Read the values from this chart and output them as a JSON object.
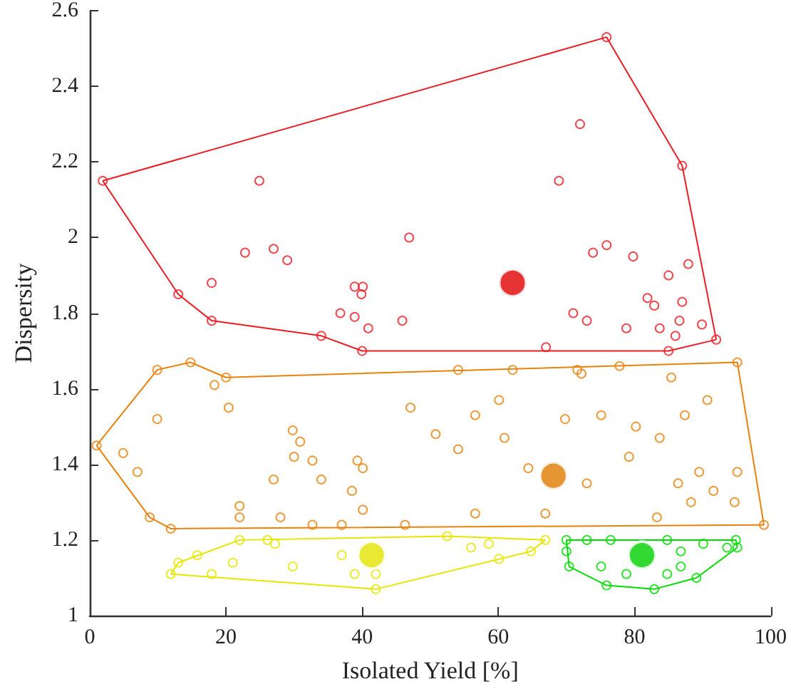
{
  "chart_data": {
    "type": "scatter",
    "xlabel": "Isolated Yield [%]",
    "ylabel": "Dispersity",
    "xlim": [
      0,
      100
    ],
    "xticks": [
      0,
      20,
      40,
      60,
      80,
      100
    ],
    "ylim": [
      1,
      2.6
    ],
    "yticks": [
      1,
      1.2,
      1.4,
      1.6,
      1.8,
      2,
      2.2,
      2.4,
      2.6
    ],
    "grid": false,
    "marker": "circle",
    "series": [
      {
        "type": "line",
        "color": "#ec1c24",
        "marker": "none",
        "x": [
          1.9,
          75.9,
          87.0,
          92.0
        ],
        "values": [
          2.15,
          2.53,
          2.19,
          1.73
        ]
      },
      {
        "type": "line",
        "color": "#ec1c24",
        "marker": "none",
        "x": [
          1.9,
          13.0,
          17.9,
          34.0,
          40.0,
          85.0,
          92.0
        ],
        "values": [
          2.15,
          1.85,
          1.78,
          1.74,
          1.7,
          1.7,
          1.73
        ]
      },
      {
        "type": "line",
        "color": "#e8820c",
        "marker": "none",
        "x": [
          1.0,
          9.9,
          14.8,
          20.0,
          95.1,
          99.0
        ],
        "values": [
          1.45,
          1.65,
          1.67,
          1.63,
          1.67,
          1.24
        ]
      },
      {
        "type": "line",
        "color": "#e8820c",
        "marker": "none",
        "x": [
          1.0,
          8.8,
          11.9,
          99.0
        ],
        "values": [
          1.45,
          1.26,
          1.23,
          1.24
        ]
      },
      {
        "type": "line",
        "color": "#e6e600",
        "marker": "none",
        "x": [
          11.9,
          13.0,
          22.0,
          52.5,
          66.9
        ],
        "values": [
          1.11,
          1.14,
          1.2,
          1.21,
          1.2
        ]
      },
      {
        "type": "line",
        "color": "#e6e600",
        "marker": "none",
        "x": [
          11.9,
          42.0,
          64.8,
          66.9
        ],
        "values": [
          1.11,
          1.07,
          1.17,
          1.2
        ]
      },
      {
        "type": "line",
        "color": "#00dd00",
        "marker": "none",
        "x": [
          70.0,
          94.9,
          95.1
        ],
        "values": [
          1.2,
          1.2,
          1.18
        ]
      },
      {
        "type": "line",
        "color": "#00dd00",
        "marker": "none",
        "x": [
          70.0,
          70.4,
          75.9,
          82.9,
          89.1,
          95.1
        ],
        "values": [
          1.2,
          1.13,
          1.08,
          1.07,
          1.1,
          1.18
        ]
      },
      {
        "color": "#ec1c24",
        "x": [
          1.9,
          75.9,
          87.0,
          92.0,
          85.0,
          67.0,
          40.0,
          34.0,
          17.9,
          13.0,
          22.8,
          27.0,
          29.0,
          17.9,
          38.9,
          40.1,
          39.9,
          36.8,
          38.9,
          40.9,
          45.9,
          46.9,
          72.0,
          68.9,
          75.9,
          73.9,
          79.8,
          85.0,
          87.9,
          81.9,
          82.9,
          71.0,
          73.0,
          87.0,
          86.6,
          89.9,
          78.8,
          83.7,
          86.0,
          24.9
        ],
        "values": [
          2.15,
          2.53,
          2.19,
          1.73,
          1.7,
          1.71,
          1.7,
          1.74,
          1.78,
          1.85,
          1.96,
          1.97,
          1.94,
          1.88,
          1.87,
          1.87,
          1.85,
          1.8,
          1.79,
          1.76,
          1.78,
          2.0,
          2.3,
          2.15,
          1.98,
          1.96,
          1.95,
          1.9,
          1.93,
          1.84,
          1.82,
          1.8,
          1.78,
          1.83,
          1.78,
          1.77,
          1.76,
          1.76,
          1.74,
          2.15
        ]
      },
      {
        "color": "#e8820c",
        "x": [
          9.9,
          14.8,
          20.0,
          18.3,
          20.4,
          9.9,
          1.0,
          4.9,
          7.0,
          8.8,
          11.9,
          22.0,
          22.0,
          28.0,
          32.7,
          37.0,
          29.8,
          30.9,
          30.0,
          27.0,
          34.0,
          32.7,
          39.3,
          40.1,
          38.5,
          40.1,
          47.1,
          50.8,
          54.1,
          60.9,
          62.1,
          54.1,
          71.6,
          72.2,
          77.8,
          85.4,
          90.7,
          95.1,
          87.4,
          95.1,
          99.0,
          94.7,
          88.3,
          83.3,
          66.9,
          56.6,
          46.3,
          64.4,
          73.0,
          79.2,
          86.4,
          69.8,
          75.1,
          80.2,
          56.6,
          60.1,
          91.6,
          89.5,
          83.7
        ],
        "values": [
          1.65,
          1.67,
          1.63,
          1.61,
          1.55,
          1.52,
          1.45,
          1.43,
          1.38,
          1.26,
          1.23,
          1.29,
          1.26,
          1.26,
          1.24,
          1.24,
          1.49,
          1.46,
          1.42,
          1.36,
          1.36,
          1.41,
          1.41,
          1.39,
          1.33,
          1.28,
          1.55,
          1.48,
          1.44,
          1.47,
          1.65,
          1.65,
          1.65,
          1.64,
          1.66,
          1.63,
          1.57,
          1.67,
          1.53,
          1.38,
          1.24,
          1.3,
          1.3,
          1.26,
          1.27,
          1.27,
          1.24,
          1.39,
          1.35,
          1.42,
          1.35,
          1.52,
          1.53,
          1.5,
          1.53,
          1.57,
          1.33,
          1.38,
          1.47
        ]
      },
      {
        "color": "#e6e600",
        "x": [
          11.9,
          13.0,
          15.8,
          22.0,
          26.1,
          27.2,
          21.0,
          17.9,
          29.8,
          37.0,
          38.9,
          42.0,
          42.0,
          60.1,
          64.8,
          66.9,
          58.6,
          56.0,
          52.5
        ],
        "values": [
          1.11,
          1.14,
          1.16,
          1.2,
          1.2,
          1.19,
          1.14,
          1.11,
          1.13,
          1.16,
          1.11,
          1.07,
          1.11,
          1.15,
          1.17,
          1.2,
          1.19,
          1.18,
          1.21
        ]
      },
      {
        "color": "#00dd00",
        "x": [
          70.0,
          70.0,
          70.4,
          75.9,
          78.8,
          82.9,
          89.1,
          90.1,
          94.9,
          95.1,
          93.6,
          73.0,
          76.5,
          84.8,
          86.8,
          86.8,
          84.8,
          75.1
        ],
        "values": [
          1.2,
          1.17,
          1.13,
          1.08,
          1.11,
          1.07,
          1.1,
          1.19,
          1.2,
          1.18,
          1.18,
          1.2,
          1.2,
          1.2,
          1.17,
          1.13,
          1.11,
          1.13
        ]
      },
      {
        "color": "#e00000",
        "x": [
          62.1
        ],
        "values": [
          1.88
        ]
      },
      {
        "color": "#e07b00",
        "x": [
          68.1
        ],
        "values": [
          1.37
        ]
      },
      {
        "color": "#e3e300",
        "x": [
          41.4
        ],
        "values": [
          1.16
        ]
      },
      {
        "color": "#00d000",
        "x": [
          81.1
        ],
        "values": [
          1.16
        ]
      }
    ]
  }
}
